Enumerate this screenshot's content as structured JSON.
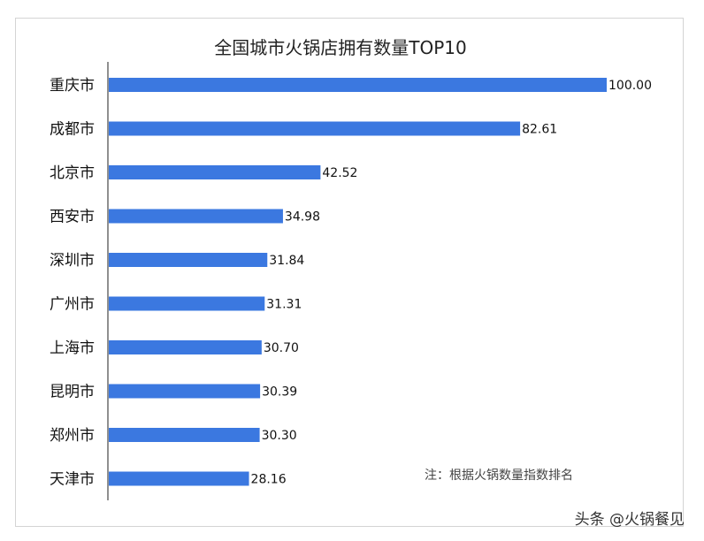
{
  "chart_data": {
    "type": "bar",
    "orientation": "horizontal",
    "title": "全国城市火锅店拥有数量TOP10",
    "categories": [
      "重庆市",
      "成都市",
      "北京市",
      "西安市",
      "深圳市",
      "广州市",
      "上海市",
      "昆明市",
      "郑州市",
      "天津市"
    ],
    "values": [
      100.0,
      82.61,
      42.52,
      34.98,
      31.84,
      31.31,
      30.7,
      30.39,
      30.3,
      28.16
    ],
    "value_labels": [
      "100.00",
      "82.61",
      "42.52",
      "34.98",
      "31.84",
      "31.31",
      "30.70",
      "30.39",
      "30.30",
      "28.16"
    ],
    "xlim": [
      0,
      100
    ],
    "bar_color": "#3b78e0",
    "grid": false,
    "annotation": "注：根据火锅数量指数排名"
  },
  "watermark": "头条 @火锅餐见"
}
